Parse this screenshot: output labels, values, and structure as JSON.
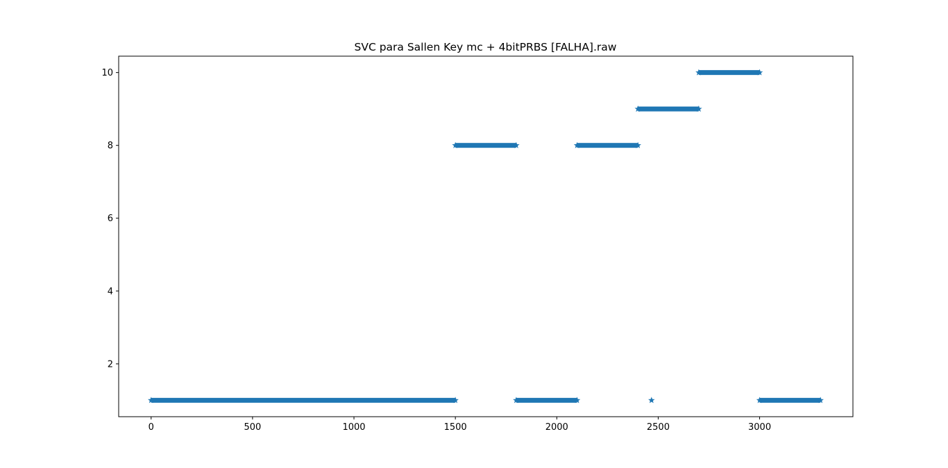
{
  "chart_data": {
    "type": "scatter",
    "title": "SVC para Sallen Key mc + 4bitPRBS [FALHA].raw",
    "xlabel": "",
    "ylabel": "",
    "xlim": [
      -160,
      3460
    ],
    "ylim": [
      0.55,
      10.45
    ],
    "xticks": [
      0,
      500,
      1000,
      1500,
      2000,
      2500,
      3000
    ],
    "yticks": [
      2,
      4,
      6,
      8,
      10
    ],
    "marker": "star",
    "color": "#1f77b4",
    "grid": false,
    "legend": "none",
    "segments": [
      {
        "x_start": 0,
        "x_end": 1500,
        "y": 1
      },
      {
        "x_start": 1500,
        "x_end": 1800,
        "y": 8
      },
      {
        "x_start": 1800,
        "x_end": 2100,
        "y": 1
      },
      {
        "x_start": 2100,
        "x_end": 2400,
        "y": 8
      },
      {
        "x_start": 2400,
        "x_end": 2700,
        "y": 9
      },
      {
        "x_start": 2700,
        "x_end": 3000,
        "y": 10
      },
      {
        "x_start": 3000,
        "x_end": 3300,
        "y": 1
      }
    ],
    "points": [
      {
        "x": 2467,
        "y": 1
      }
    ]
  }
}
